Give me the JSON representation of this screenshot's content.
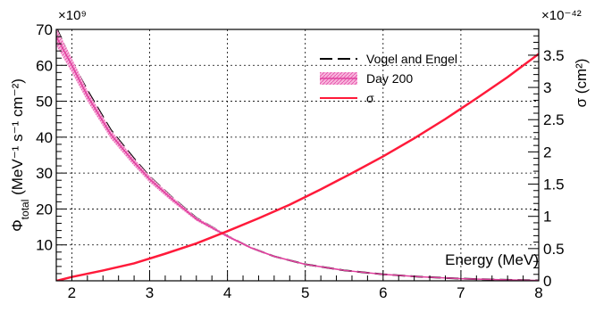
{
  "chart_data": {
    "type": "line",
    "x": {
      "label": "Energy (MeV)",
      "range": [
        1.8,
        8
      ],
      "ticks": [
        2,
        3,
        4,
        5,
        6,
        7,
        8
      ]
    },
    "y_left": {
      "label_main": "Φ",
      "label_sub": "total",
      "label_unit": " (MeV⁻¹ s⁻¹ cm⁻²)",
      "multiplier": "×10⁹",
      "range": [
        0,
        70
      ],
      "ticks": [
        10,
        20,
        30,
        40,
        50,
        60,
        70
      ]
    },
    "y_right": {
      "label": "σ (cm²)",
      "multiplier": "×10⁻⁴²",
      "range": [
        0,
        3.9
      ],
      "ticks": [
        0,
        0.5,
        1,
        1.5,
        2,
        2.5,
        3,
        3.5
      ]
    },
    "grid": true,
    "legend_position": "top-center",
    "series": [
      {
        "name": "Vogel and Engel",
        "axis": "left",
        "style": "dashed",
        "color": "#000000",
        "x": [
          1.8,
          2.0,
          2.2,
          2.5,
          2.8,
          3.0,
          3.3,
          3.6,
          4.0,
          4.3,
          4.6,
          5.0,
          5.5,
          6.0,
          6.5,
          7.0,
          7.5,
          8.0
        ],
        "y": [
          70.5,
          61,
          53,
          42,
          34,
          29,
          23,
          17.5,
          12.5,
          9.2,
          6.8,
          4.6,
          2.9,
          1.8,
          1.1,
          0.6,
          0.3,
          0.1
        ]
      },
      {
        "name": "Day 200",
        "axis": "left",
        "style": "band",
        "color": "#e0409e",
        "fill": "#f29ad0",
        "x": [
          1.8,
          2.0,
          2.2,
          2.5,
          2.8,
          3.0,
          3.3,
          3.6,
          4.0,
          4.3,
          4.6,
          5.0,
          5.5,
          6.0,
          6.5,
          7.0,
          7.5,
          8.0
        ],
        "y": [
          68,
          60,
          51.5,
          40.8,
          33,
          28.3,
          22.5,
          17.2,
          12.4,
          9.2,
          6.8,
          4.6,
          2.9,
          1.8,
          1.1,
          0.6,
          0.3,
          0.1
        ],
        "band_halfwidth": [
          2.5,
          2.0,
          1.5,
          1.2,
          1.0,
          0.9,
          0.7,
          0.5,
          0.35,
          0.25,
          0.2,
          0.15,
          0.1,
          0.08,
          0.05,
          0.04,
          0.03,
          0.02
        ]
      },
      {
        "name": "σ",
        "axis": "right",
        "style": "solid",
        "color": "#ff1a3a",
        "x": [
          1.806,
          2.0,
          2.4,
          2.8,
          3.2,
          3.6,
          4.0,
          4.4,
          4.8,
          5.2,
          5.6,
          6.0,
          6.4,
          6.8,
          7.2,
          7.6,
          8.0
        ],
        "y": [
          0.0,
          0.06,
          0.16,
          0.27,
          0.42,
          0.58,
          0.77,
          0.97,
          1.18,
          1.42,
          1.67,
          1.93,
          2.21,
          2.51,
          2.83,
          3.16,
          3.52
        ]
      }
    ]
  }
}
